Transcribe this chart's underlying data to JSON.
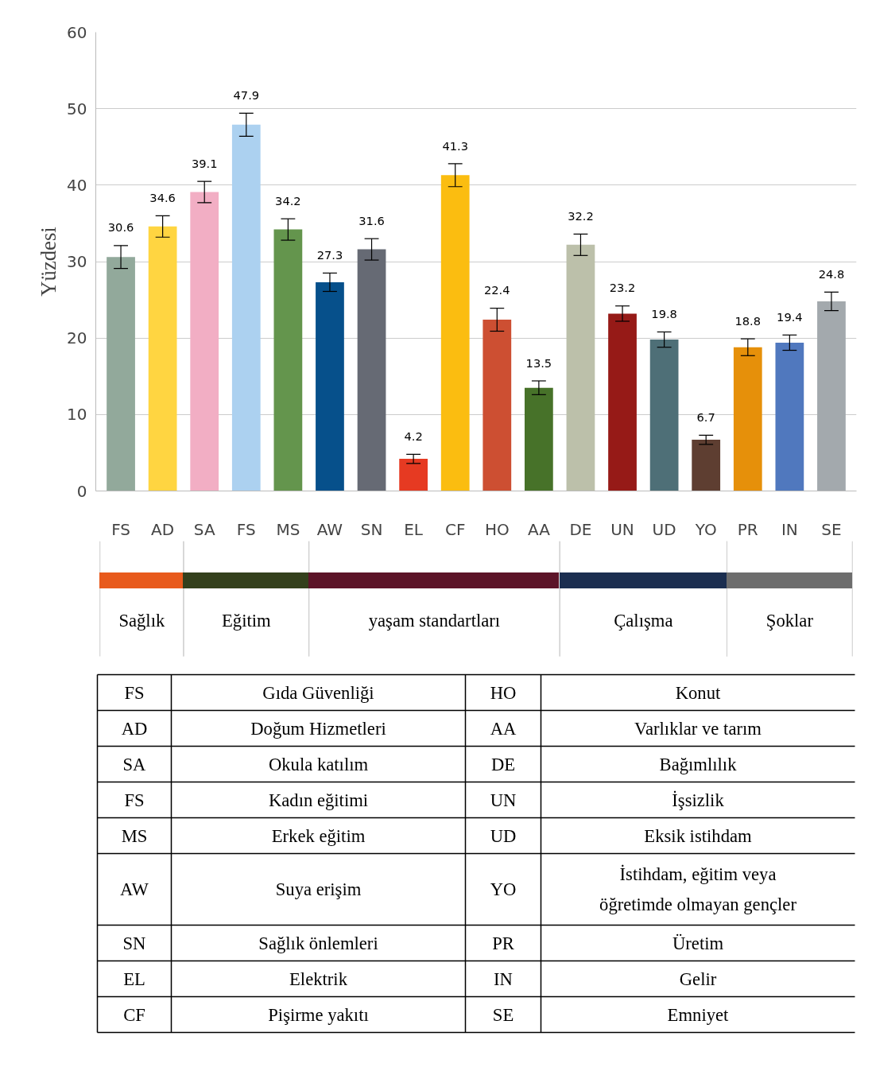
{
  "chart_data": {
    "type": "bar",
    "ylabel": "Yüzdesi",
    "categories": [
      "FS",
      "AD",
      "SA",
      "FS",
      "MS",
      "AW",
      "SN",
      "EL",
      "CF",
      "HO",
      "AA",
      "DE",
      "UN",
      "UD",
      "YO",
      "PR",
      "IN",
      "SE"
    ],
    "values": [
      30.6,
      34.6,
      39.1,
      47.9,
      34.2,
      27.3,
      31.6,
      4.2,
      41.3,
      22.4,
      13.5,
      32.2,
      23.2,
      19.8,
      6.7,
      18.8,
      19.4,
      24.8
    ],
    "colors": [
      "#92a99b",
      "#ffd541",
      "#f2aec4",
      "#acd1f0",
      "#64954d",
      "#06508b",
      "#666a74",
      "#e63a22",
      "#fbbd10",
      "#cd4f32",
      "#477229",
      "#bcc0aa",
      "#961a17",
      "#4e6f77",
      "#5e3e31",
      "#e6900a",
      "#5078be",
      "#a3a9ad"
    ],
    "errors": [
      1.5,
      1.4,
      1.4,
      1.5,
      1.4,
      1.2,
      1.4,
      0.6,
      1.5,
      1.5,
      0.9,
      1.4,
      1.0,
      1.0,
      0.6,
      1.1,
      1.0,
      1.2
    ],
    "data_labels": true,
    "ylim": [
      0,
      60
    ],
    "yticks": [
      0,
      10,
      20,
      30,
      40,
      50,
      60
    ],
    "grid": "y",
    "annotations": [
      "Sağlık",
      "Eğitim",
      "yaşam standartları",
      "Çalışma",
      "Şoklar",
      "FS",
      "Gıda Güvenliği",
      "AD",
      "Doğum Hizmetleri",
      "SA",
      "Okula katılım",
      "FS",
      "Kadın eğitimi",
      "MS",
      "Erkek eğitim",
      "AW",
      "Suya erişim",
      "SN",
      "Sağlık önlemleri",
      "EL",
      "Elektrik",
      "CF",
      "Pişirme yakıtı",
      "HO",
      "Konut",
      "AA",
      "Varlıklar ve tarım",
      "DE",
      "Bağımlılık",
      "UN",
      "İşsizlik",
      "UD",
      "Eksik istihdam",
      "YO",
      "İstihdam, eğitim veya öğretimde olmayan gençler",
      "PR",
      "Üretim",
      "IN",
      "Gelir",
      "SE",
      "Emniyet"
    ]
  }
}
